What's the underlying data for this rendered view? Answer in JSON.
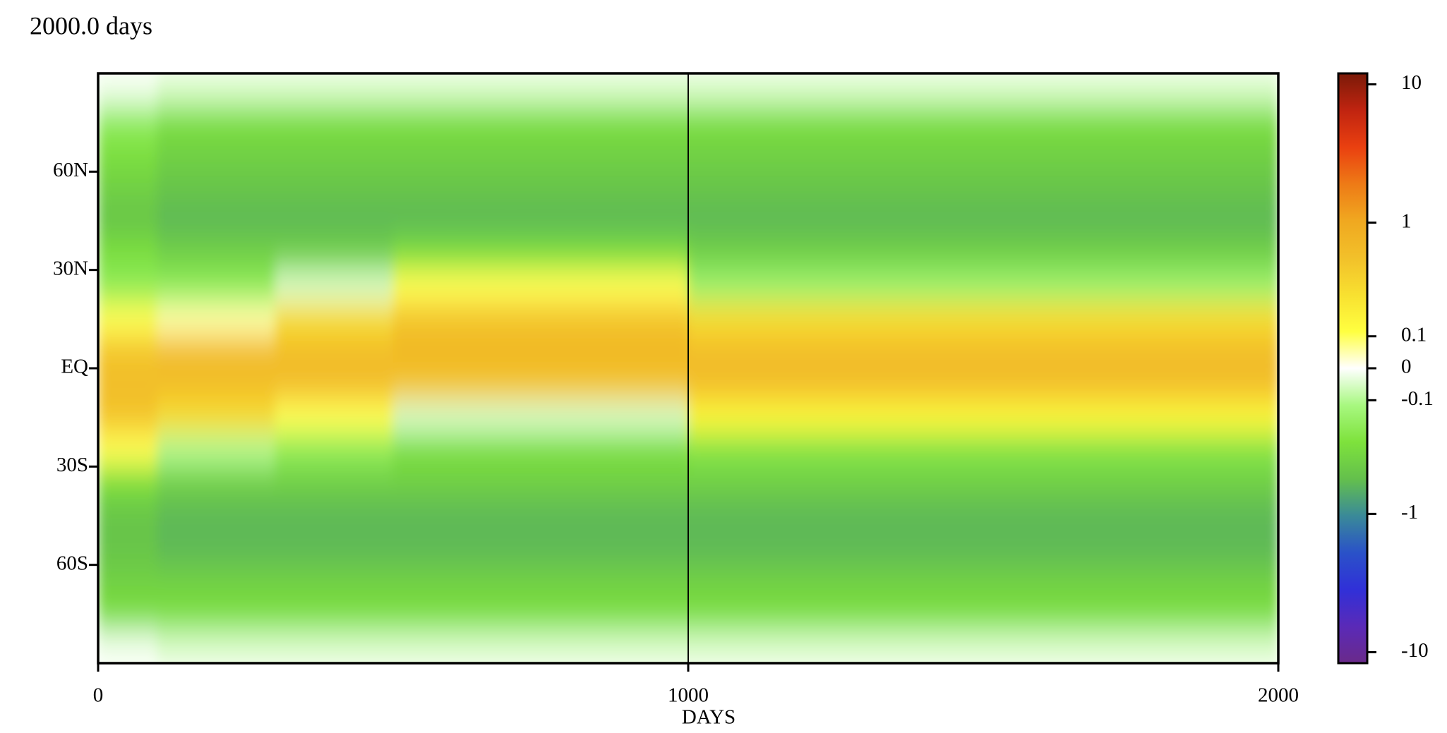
{
  "chart_data": {
    "type": "heatmap",
    "title": "2000.0 days",
    "xlabel": "DAYS",
    "xlim": [
      0,
      2000
    ],
    "xticks": [
      0,
      1000,
      2000
    ],
    "xline": 1000,
    "ylim": [
      -90,
      90
    ],
    "yticks": [
      {
        "value": 60,
        "label": "60N"
      },
      {
        "value": 30,
        "label": "30N"
      },
      {
        "value": 0,
        "label": "EQ"
      },
      {
        "value": -30,
        "label": "30S"
      },
      {
        "value": -60,
        "label": "60S"
      }
    ],
    "x_edges": [
      0,
      100,
      200,
      300,
      400,
      500,
      600,
      700,
      800,
      900,
      1000,
      1100,
      1200,
      1300,
      1400,
      1500,
      1600,
      1700,
      1800,
      1900,
      2000
    ],
    "y_edges": [
      90,
      80,
      70,
      60,
      50,
      40,
      30,
      20,
      10,
      0,
      -10,
      -20,
      -30,
      -40,
      -50,
      -60,
      -70,
      -80,
      -90
    ],
    "z": [
      [
        -0.02,
        -0.05,
        -0.05,
        -0.05,
        -0.05,
        -0.05,
        -0.05,
        -0.05,
        -0.05,
        -0.05,
        -0.05,
        -0.05,
        -0.05,
        -0.05,
        -0.05,
        -0.05,
        -0.05,
        -0.05,
        -0.05,
        -0.05
      ],
      [
        -0.2,
        -0.3,
        -0.3,
        -0.3,
        -0.3,
        -0.3,
        -0.3,
        -0.3,
        -0.3,
        -0.3,
        -0.3,
        -0.3,
        -0.3,
        -0.3,
        -0.3,
        -0.3,
        -0.3,
        -0.3,
        -0.3,
        -0.3
      ],
      [
        -0.3,
        -0.4,
        -0.4,
        -0.4,
        -0.4,
        -0.4,
        -0.4,
        -0.4,
        -0.4,
        -0.4,
        -0.4,
        -0.4,
        -0.4,
        -0.4,
        -0.4,
        -0.4,
        -0.4,
        -0.4,
        -0.4,
        -0.4
      ],
      [
        -0.4,
        -0.5,
        -0.5,
        -0.5,
        -0.5,
        -0.5,
        -0.5,
        -0.5,
        -0.5,
        -0.5,
        -0.5,
        -0.5,
        -0.5,
        -0.5,
        -0.5,
        -0.5,
        -0.5,
        -0.5,
        -0.5,
        -0.5
      ],
      [
        -0.5,
        -0.6,
        -0.6,
        -0.6,
        -0.6,
        -0.6,
        -0.6,
        -0.6,
        -0.6,
        -0.6,
        -0.6,
        -0.6,
        -0.6,
        -0.6,
        -0.6,
        -0.6,
        -0.6,
        -0.6,
        -0.6,
        -0.6
      ],
      [
        -0.3,
        -0.4,
        -0.4,
        -0.4,
        -0.4,
        -0.3,
        -0.3,
        -0.3,
        -0.3,
        -0.3,
        -0.4,
        -0.4,
        -0.4,
        -0.4,
        -0.4,
        -0.4,
        -0.4,
        -0.4,
        -0.4,
        -0.4
      ],
      [
        -0.2,
        -0.2,
        -0.2,
        -0.05,
        -0.05,
        0.1,
        0.1,
        0.1,
        0.1,
        0.1,
        -0.15,
        -0.15,
        -0.15,
        -0.15,
        -0.15,
        -0.15,
        -0.15,
        -0.15,
        -0.15,
        -0.15
      ],
      [
        0.1,
        0.05,
        0.05,
        0.3,
        0.3,
        0.5,
        0.5,
        0.5,
        0.5,
        0.5,
        0.3,
        0.3,
        0.3,
        0.3,
        0.3,
        0.3,
        0.3,
        0.3,
        0.3,
        0.3
      ],
      [
        0.5,
        0.6,
        0.6,
        0.6,
        0.6,
        0.7,
        0.7,
        0.7,
        0.7,
        0.7,
        0.6,
        0.6,
        0.6,
        0.6,
        0.6,
        0.6,
        0.6,
        0.6,
        0.6,
        0.6
      ],
      [
        0.6,
        0.6,
        0.6,
        0.6,
        0.6,
        0.5,
        0.5,
        0.5,
        0.5,
        0.5,
        0.6,
        0.6,
        0.6,
        0.6,
        0.6,
        0.6,
        0.6,
        0.6,
        0.6,
        0.6
      ],
      [
        0.5,
        0.3,
        0.3,
        0.1,
        0.1,
        -0.05,
        -0.05,
        -0.05,
        -0.05,
        -0.05,
        0.15,
        0.15,
        0.15,
        0.15,
        0.15,
        0.15,
        0.15,
        0.15,
        0.15,
        0.15
      ],
      [
        0.1,
        -0.1,
        -0.1,
        -0.2,
        -0.2,
        -0.3,
        -0.3,
        -0.3,
        -0.3,
        -0.3,
        -0.25,
        -0.25,
        -0.25,
        -0.25,
        -0.25,
        -0.25,
        -0.25,
        -0.25,
        -0.25,
        -0.25
      ],
      [
        -0.3,
        -0.4,
        -0.4,
        -0.4,
        -0.4,
        -0.4,
        -0.4,
        -0.4,
        -0.4,
        -0.4,
        -0.4,
        -0.4,
        -0.4,
        -0.4,
        -0.4,
        -0.4,
        -0.4,
        -0.4,
        -0.4,
        -0.4
      ],
      [
        -0.5,
        -0.6,
        -0.6,
        -0.6,
        -0.6,
        -0.6,
        -0.6,
        -0.6,
        -0.6,
        -0.6,
        -0.6,
        -0.6,
        -0.6,
        -0.6,
        -0.6,
        -0.6,
        -0.6,
        -0.6,
        -0.6,
        -0.6
      ],
      [
        -0.5,
        -0.6,
        -0.6,
        -0.6,
        -0.6,
        -0.6,
        -0.6,
        -0.6,
        -0.6,
        -0.6,
        -0.6,
        -0.6,
        -0.6,
        -0.6,
        -0.6,
        -0.6,
        -0.6,
        -0.6,
        -0.6,
        -0.6
      ],
      [
        -0.4,
        -0.4,
        -0.4,
        -0.4,
        -0.4,
        -0.4,
        -0.4,
        -0.4,
        -0.4,
        -0.4,
        -0.4,
        -0.4,
        -0.4,
        -0.4,
        -0.4,
        -0.4,
        -0.4,
        -0.4,
        -0.4,
        -0.4
      ],
      [
        -0.3,
        -0.3,
        -0.3,
        -0.3,
        -0.3,
        -0.3,
        -0.3,
        -0.3,
        -0.3,
        -0.3,
        -0.3,
        -0.3,
        -0.3,
        -0.3,
        -0.3,
        -0.3,
        -0.3,
        -0.3,
        -0.3,
        -0.3
      ],
      [
        -0.02,
        -0.05,
        -0.05,
        -0.05,
        -0.05,
        -0.05,
        -0.05,
        -0.05,
        -0.05,
        -0.05,
        -0.05,
        -0.05,
        -0.05,
        -0.05,
        -0.05,
        -0.05,
        -0.05,
        -0.05,
        -0.05,
        -0.05
      ]
    ],
    "clim": [
      -12,
      12
    ],
    "cticks": [
      10,
      1,
      0.1,
      0,
      -0.1,
      -1,
      -10
    ],
    "colormap": [
      "#6a2a8a",
      "#5a2ab8",
      "#3030d8",
      "#2a52c8",
      "#3a8a98",
      "#64c04c",
      "#7ee23c",
      "#a8f880",
      "#ffffff",
      "#ffff40",
      "#f8e030",
      "#f2c02a",
      "#f0a820",
      "#ee7a16",
      "#ea4010",
      "#c02410",
      "#7a1a08"
    ]
  }
}
